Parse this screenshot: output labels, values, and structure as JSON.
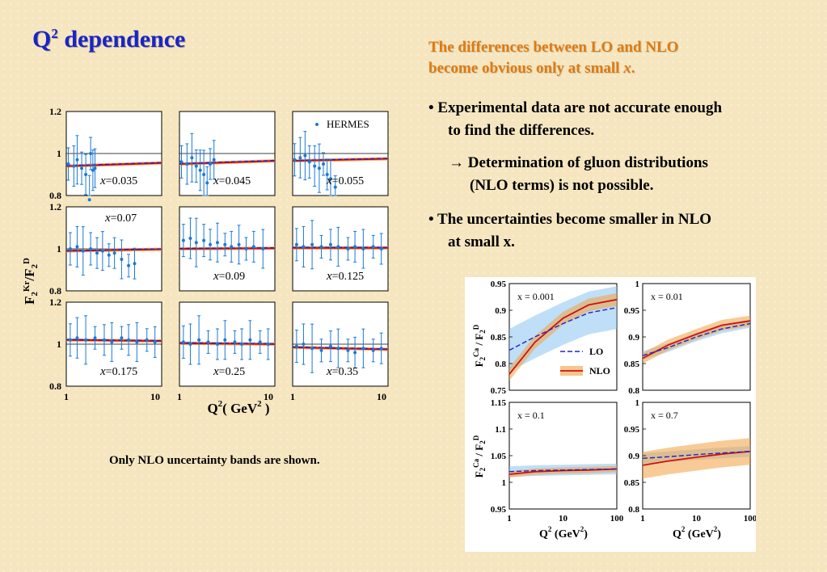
{
  "title": {
    "main": "Q",
    "sup": "2",
    "rest": " dependence"
  },
  "headline": {
    "line1": "The differences between LO and NLO",
    "line2_prefix": "become obvious only at small ",
    "line2_var": "x",
    "line2_suffix": "."
  },
  "bullets": {
    "b1_line1": "•  Experimental data are not accurate enough",
    "b1_line2": "to find the differences.",
    "b1_arrow": "→",
    "b1_sub_line1": " Determination of gluon distributions",
    "b1_sub_line2": "(NLO terms) is not possible.",
    "b2_line1": "•  The uncertainties become smaller in NLO",
    "b2_line2": "at small x."
  },
  "note": "Only NLO uncertainty bands are shown.",
  "colors": {
    "lo": "#2222cc",
    "nlo": "#d01010",
    "band_nlo": "#f2a040",
    "band_lo": "#88c4f0",
    "data": "#1a7ad8",
    "title": "#1a24c8",
    "headline": "#e07a10"
  },
  "chart_data": [
    {
      "type": "scatter",
      "description_id": "left-grid",
      "ylabel": "F2Kr/F2D",
      "xlabel_main": "Q",
      "xlabel_sup": "2",
      "xlabel_unit": "( GeV",
      "xlabel_unit_sup": "2",
      "xlabel_close": " )",
      "xscale": "log",
      "xlim": [
        1,
        10
      ],
      "ylim": [
        0.8,
        1.2
      ],
      "yticks": [
        "1.2",
        "1",
        "0.8"
      ],
      "xticks": [
        "1",
        "10"
      ],
      "legend": {
        "label": "HERMES",
        "placement": "top-right"
      },
      "panels": [
        {
          "x_label": "=0.035",
          "ratio": [
            0.94,
            0.955
          ],
          "points": [
            [
              1.05,
              0.95
            ],
            [
              1.2,
              0.94
            ],
            [
              1.3,
              0.97
            ],
            [
              1.45,
              0.93
            ],
            [
              1.6,
              0.9
            ],
            [
              1.75,
              0.78
            ],
            [
              1.8,
              1.0
            ],
            [
              1.9,
              0.92
            ],
            [
              2.0,
              0.93
            ]
          ]
        },
        {
          "x_label": "=0.045",
          "ratio": [
            0.95,
            0.965
          ],
          "points": [
            [
              1.05,
              0.96
            ],
            [
              1.2,
              0.95
            ],
            [
              1.35,
              0.98
            ],
            [
              1.5,
              0.94
            ],
            [
              1.65,
              0.92
            ],
            [
              1.8,
              0.9
            ],
            [
              1.95,
              0.86
            ],
            [
              2.1,
              0.95
            ],
            [
              2.3,
              0.97
            ]
          ]
        },
        {
          "x_label": "=0.055",
          "ratio": [
            0.965,
            0.975
          ],
          "points": [
            [
              1.05,
              0.97
            ],
            [
              1.2,
              0.98
            ],
            [
              1.35,
              0.99
            ],
            [
              1.5,
              0.96
            ],
            [
              1.7,
              0.94
            ],
            [
              1.9,
              0.93
            ],
            [
              2.1,
              0.95
            ],
            [
              2.3,
              0.9
            ],
            [
              2.5,
              0.88
            ],
            [
              2.8,
              0.84
            ]
          ]
        },
        {
          "x_label": "=0.07",
          "ratio": [
            0.99,
            0.998
          ],
          "points": [
            [
              1.1,
              1.0
            ],
            [
              1.3,
              1.01
            ],
            [
              1.5,
              0.99
            ],
            [
              1.8,
              1.0
            ],
            [
              2.1,
              0.98
            ],
            [
              2.4,
              0.99
            ],
            [
              2.8,
              0.97
            ],
            [
              3.2,
              0.98
            ],
            [
              3.8,
              0.95
            ],
            [
              4.5,
              0.92
            ],
            [
              5.2,
              0.93
            ]
          ]
        },
        {
          "x_label": "=0.09",
          "ratio": [
            1.0,
            1.003
          ],
          "points": [
            [
              1.1,
              1.04
            ],
            [
              1.3,
              1.05
            ],
            [
              1.5,
              1.03
            ],
            [
              1.8,
              1.04
            ],
            [
              2.1,
              1.02
            ],
            [
              2.5,
              1.03
            ],
            [
              3.0,
              1.02
            ],
            [
              3.5,
              1.01
            ],
            [
              4.2,
              1.02
            ],
            [
              5.0,
              1.0
            ],
            [
              6.0,
              1.01
            ],
            [
              7.5,
              1.0
            ]
          ]
        },
        {
          "x_label": "=0.125",
          "ratio": [
            1.005,
            1.005
          ],
          "points": [
            [
              1.1,
              1.02
            ],
            [
              1.3,
              1.01
            ],
            [
              1.6,
              1.02
            ],
            [
              2.0,
              1.01
            ],
            [
              2.5,
              1.02
            ],
            [
              3.0,
              1.01
            ],
            [
              3.8,
              1.0
            ],
            [
              4.5,
              1.01
            ],
            [
              5.5,
              1.0
            ],
            [
              7.0,
              1.01
            ],
            [
              8.5,
              1.0
            ]
          ]
        },
        {
          "x_label": "=0.175",
          "ratio": [
            1.02,
            1.015
          ],
          "points": [
            [
              1.1,
              1.02
            ],
            [
              1.3,
              1.03
            ],
            [
              1.6,
              1.02
            ],
            [
              2.0,
              1.03
            ],
            [
              2.5,
              1.02
            ],
            [
              3.0,
              1.01
            ],
            [
              3.8,
              1.03
            ],
            [
              4.5,
              1.02
            ],
            [
              5.5,
              1.01
            ],
            [
              7.0,
              1.02
            ],
            [
              8.5,
              1.01
            ]
          ]
        },
        {
          "x_label": "=0.25",
          "ratio": [
            1.005,
            1.0
          ],
          "points": [
            [
              1.1,
              1.01
            ],
            [
              1.3,
              1.0
            ],
            [
              1.6,
              1.02
            ],
            [
              2.0,
              1.01
            ],
            [
              2.5,
              1.0
            ],
            [
              3.0,
              1.02
            ],
            [
              3.8,
              1.01
            ],
            [
              4.5,
              1.0
            ],
            [
              5.5,
              1.02
            ],
            [
              7.0,
              1.01
            ],
            [
              8.5,
              1.0
            ]
          ]
        },
        {
          "x_label": "=0.35",
          "ratio": [
            0.985,
            0.975
          ],
          "points": [
            [
              1.1,
              0.99
            ],
            [
              1.3,
              1.0
            ],
            [
              1.6,
              0.98
            ],
            [
              2.0,
              0.97
            ],
            [
              2.5,
              0.99
            ],
            [
              3.0,
              0.98
            ],
            [
              3.8,
              0.97
            ],
            [
              4.5,
              0.96
            ],
            [
              5.5,
              0.98
            ],
            [
              7.0,
              0.97
            ],
            [
              8.5,
              0.98
            ]
          ]
        }
      ]
    },
    {
      "type": "line",
      "description_id": "right-grid",
      "ylabel": "F2Ca / F2D",
      "xlabel_main": "Q",
      "xlabel_sup": "2",
      "xlabel_unit": " (GeV",
      "xlabel_unit_sup": "2",
      "xlabel_close": ")",
      "xscale": "log",
      "xlim": [
        1,
        100
      ],
      "xticks": [
        "1",
        "10",
        "100"
      ],
      "series_names": [
        "LO",
        "NLO"
      ],
      "legend": {
        "placement": "bottom-right"
      },
      "panels": [
        {
          "x_label": "x = 0.001",
          "ylim": [
            0.75,
            0.95
          ],
          "yticks": [
            "0.95",
            "0.9",
            "0.85",
            "0.8",
            "0.75"
          ],
          "lo": [
            0.825,
            0.85,
            0.875,
            0.895,
            0.905
          ],
          "lo_band": 0.04,
          "nlo": [
            0.78,
            0.84,
            0.885,
            0.91,
            0.92
          ],
          "nlo_band": 0.012
        },
        {
          "x_label": "x = 0.01",
          "ylim": [
            0.8,
            1.0
          ],
          "yticks": [
            "1",
            "0.95",
            "0.9",
            "0.85",
            "0.8"
          ],
          "lo": [
            0.865,
            0.88,
            0.9,
            0.915,
            0.925
          ],
          "lo_band": 0.008,
          "nlo": [
            0.86,
            0.885,
            0.905,
            0.922,
            0.93
          ],
          "nlo_band": 0.01
        },
        {
          "x_label": "x = 0.1",
          "ylim": [
            0.95,
            1.15
          ],
          "yticks": [
            "1.15",
            "1.1",
            "1.05",
            "1",
            "0.95"
          ],
          "lo": [
            1.02,
            1.022,
            1.023,
            1.024,
            1.025
          ],
          "lo_band": 0.01,
          "nlo": [
            1.015,
            1.02,
            1.022,
            1.023,
            1.025
          ],
          "nlo_band": 0.006
        },
        {
          "x_label": "x = 0.7",
          "ylim": [
            0.8,
            1.0
          ],
          "yticks": [
            "1",
            "0.95",
            "0.9",
            "0.85",
            "0.8"
          ],
          "lo": [
            0.895,
            0.898,
            0.902,
            0.905,
            0.908
          ],
          "lo_band": 0.01,
          "nlo": [
            0.882,
            0.89,
            0.897,
            0.903,
            0.908
          ],
          "nlo_band": 0.025
        }
      ]
    }
  ]
}
